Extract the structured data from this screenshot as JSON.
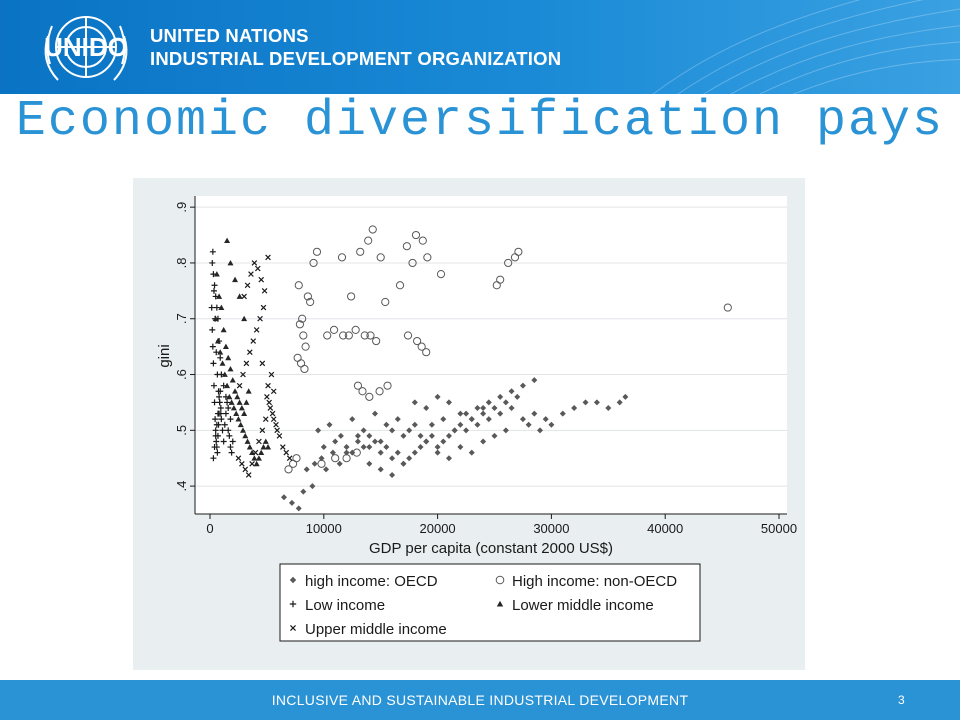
{
  "header": {
    "logo_text": "UNIDO",
    "org_line1": "UNITED NATIONS",
    "org_line2": "INDUSTRIAL DEVELOPMENT ORGANIZATION"
  },
  "slide": {
    "title": "Economic diversification pays"
  },
  "footer": {
    "text": "INCLUSIVE AND SUSTAINABLE INDUSTRIAL DEVELOPMENT",
    "page_number": "3"
  },
  "chart_data": {
    "type": "scatter",
    "xlabel": "GDP per capita (constant 2000 US$)",
    "ylabel": "gini",
    "xlim": [
      0,
      50000
    ],
    "ylim": [
      0.35,
      0.92
    ],
    "x_ticks": [
      0,
      10000,
      20000,
      30000,
      40000,
      50000
    ],
    "x_tick_labels": [
      "0",
      "10000",
      "20000",
      "30000",
      "40000",
      "50000"
    ],
    "y_ticks": [
      0.4,
      0.5,
      0.6,
      0.7,
      0.8,
      0.9
    ],
    "y_tick_labels": [
      ".4",
      ".5",
      ".6",
      ".7",
      ".8",
      ".9"
    ],
    "grid": true,
    "legend_position": "bottom",
    "series": [
      {
        "name": "high income: OECD",
        "marker": "diamond",
        "color": "#595959",
        "x": [
          8500,
          9200,
          9800,
          10200,
          10800,
          11400,
          12000,
          12500,
          13000,
          13500,
          14000,
          14500,
          15000,
          15500,
          16000,
          16500,
          17000,
          17500,
          18000,
          18500,
          19000,
          19500,
          20000,
          20500,
          21000,
          21500,
          22000,
          22500,
          23000,
          23500,
          24000,
          24500,
          25000,
          25500,
          26000,
          26500,
          27000,
          27500,
          28000,
          28500,
          29000,
          29500,
          30000,
          31000,
          32000,
          33000,
          34000,
          35000,
          36000,
          36500,
          9500,
          10500,
          11500,
          12500,
          13500,
          14500,
          15500,
          16500,
          17500,
          18500,
          19500,
          20500,
          21500,
          22500,
          23500,
          24500,
          25500,
          26500,
          27500,
          28500,
          10000,
          11000,
          12000,
          13000,
          14000,
          15000,
          16000,
          17000,
          18000,
          19000,
          20000,
          21000,
          22000,
          23000,
          24000,
          25000,
          26000,
          6500,
          7200,
          7800,
          8200,
          9000,
          18000,
          19000,
          20000,
          21000,
          22000,
          23000,
          24000,
          14000,
          15000,
          16000,
          17000
        ],
        "y": [
          0.43,
          0.44,
          0.45,
          0.43,
          0.46,
          0.44,
          0.47,
          0.46,
          0.48,
          0.47,
          0.49,
          0.48,
          0.46,
          0.47,
          0.45,
          0.46,
          0.44,
          0.45,
          0.46,
          0.47,
          0.48,
          0.49,
          0.47,
          0.48,
          0.49,
          0.5,
          0.51,
          0.5,
          0.52,
          0.51,
          0.53,
          0.52,
          0.54,
          0.53,
          0.55,
          0.54,
          0.56,
          0.52,
          0.51,
          0.53,
          0.5,
          0.52,
          0.51,
          0.53,
          0.54,
          0.55,
          0.55,
          0.54,
          0.55,
          0.56,
          0.5,
          0.51,
          0.49,
          0.52,
          0.5,
          0.53,
          0.51,
          0.52,
          0.5,
          0.49,
          0.51,
          0.52,
          0.5,
          0.53,
          0.54,
          0.55,
          0.56,
          0.57,
          0.58,
          0.59,
          0.47,
          0.48,
          0.46,
          0.49,
          0.47,
          0.48,
          0.5,
          0.49,
          0.51,
          0.48,
          0.46,
          0.45,
          0.47,
          0.46,
          0.48,
          0.49,
          0.5,
          0.38,
          0.37,
          0.36,
          0.39,
          0.4,
          0.55,
          0.54,
          0.56,
          0.55,
          0.53,
          0.52,
          0.54,
          0.44,
          0.43,
          0.42,
          0.44
        ]
      },
      {
        "name": "High income: non-OECD",
        "marker": "circle",
        "color": "#595959",
        "x": [
          7800,
          8100,
          8600,
          9100,
          9400,
          11600,
          12400,
          13200,
          13900,
          14300,
          15000,
          16700,
          17300,
          17800,
          18100,
          18700,
          19100,
          20300,
          25200,
          25500,
          26200,
          26800,
          27100,
          45500,
          7900,
          8200,
          8400,
          10300,
          10900,
          11700,
          12200,
          12800,
          13600,
          14100,
          14600,
          17400,
          18200,
          18600,
          19000,
          7700,
          8000,
          8300,
          13000,
          13400,
          14000,
          14900,
          15600,
          6900,
          7300,
          7600,
          9800,
          11000,
          12000,
          12900,
          8800,
          15400
        ],
        "y": [
          0.76,
          0.7,
          0.74,
          0.8,
          0.82,
          0.81,
          0.74,
          0.82,
          0.84,
          0.86,
          0.81,
          0.76,
          0.83,
          0.8,
          0.85,
          0.84,
          0.81,
          0.78,
          0.76,
          0.77,
          0.8,
          0.81,
          0.82,
          0.72,
          0.69,
          0.67,
          0.65,
          0.67,
          0.68,
          0.67,
          0.67,
          0.68,
          0.67,
          0.67,
          0.66,
          0.67,
          0.66,
          0.65,
          0.64,
          0.63,
          0.62,
          0.61,
          0.58,
          0.57,
          0.56,
          0.57,
          0.58,
          0.43,
          0.44,
          0.45,
          0.44,
          0.45,
          0.45,
          0.46,
          0.73,
          0.73
        ]
      },
      {
        "name": "Low income",
        "marker": "plus",
        "color": "#1a1a1a",
        "x": [
          150,
          200,
          250,
          300,
          350,
          400,
          450,
          500,
          550,
          600,
          650,
          700,
          750,
          800,
          850,
          900,
          950,
          1000,
          1100,
          1200,
          1300,
          1400,
          1500,
          1600,
          1700,
          1800,
          1900,
          2000,
          200,
          300,
          400,
          500,
          600,
          700,
          800,
          900,
          1000,
          1200,
          1400,
          1600,
          1800,
          250,
          350,
          450,
          550,
          650,
          750,
          850,
          950,
          300,
          400,
          500,
          600,
          700,
          800
        ],
        "y": [
          0.72,
          0.68,
          0.65,
          0.62,
          0.58,
          0.55,
          0.52,
          0.5,
          0.48,
          0.47,
          0.46,
          0.49,
          0.51,
          0.53,
          0.55,
          0.57,
          0.54,
          0.52,
          0.5,
          0.48,
          0.51,
          0.53,
          0.55,
          0.5,
          0.49,
          0.47,
          0.46,
          0.48,
          0.8,
          0.78,
          0.76,
          0.74,
          0.72,
          0.7,
          0.66,
          0.63,
          0.6,
          0.58,
          0.56,
          0.54,
          0.52,
          0.82,
          0.75,
          0.7,
          0.64,
          0.6,
          0.57,
          0.55,
          0.53,
          0.45,
          0.47,
          0.49,
          0.51,
          0.53,
          0.56
        ]
      },
      {
        "name": "Lower middle income",
        "marker": "triangle",
        "color": "#262626",
        "x": [
          500,
          700,
          900,
          1100,
          1300,
          1500,
          1700,
          1900,
          2100,
          2300,
          2500,
          2700,
          2900,
          3100,
          3300,
          3500,
          3700,
          3900,
          4100,
          4300,
          4500,
          4700,
          4900,
          5100,
          600,
          800,
          1000,
          1200,
          1400,
          1600,
          1800,
          2000,
          2200,
          2400,
          2600,
          2800,
          3000,
          3200,
          3400,
          1500,
          1800,
          2200,
          2600,
          3000
        ],
        "y": [
          0.7,
          0.66,
          0.64,
          0.62,
          0.6,
          0.58,
          0.56,
          0.55,
          0.54,
          0.53,
          0.52,
          0.51,
          0.5,
          0.49,
          0.48,
          0.47,
          0.46,
          0.45,
          0.44,
          0.45,
          0.46,
          0.47,
          0.48,
          0.47,
          0.78,
          0.74,
          0.72,
          0.68,
          0.65,
          0.63,
          0.61,
          0.59,
          0.57,
          0.56,
          0.55,
          0.54,
          0.53,
          0.55,
          0.57,
          0.84,
          0.8,
          0.77,
          0.74,
          0.7
        ]
      },
      {
        "name": "Upper middle income",
        "marker": "cross",
        "color": "#1a1a1a",
        "x": [
          2500,
          2800,
          3100,
          3400,
          3700,
          4000,
          4300,
          4600,
          4900,
          5200,
          5500,
          5800,
          6100,
          6400,
          6700,
          7000,
          2600,
          2900,
          3200,
          3500,
          3800,
          4100,
          4400,
          4700,
          5000,
          5300,
          5600,
          5900,
          3000,
          3300,
          3600,
          3900,
          4200,
          4500,
          4800,
          5100,
          5400,
          4600,
          5100,
          5600
        ],
        "y": [
          0.45,
          0.44,
          0.43,
          0.42,
          0.44,
          0.46,
          0.48,
          0.5,
          0.52,
          0.55,
          0.53,
          0.51,
          0.49,
          0.47,
          0.46,
          0.45,
          0.58,
          0.6,
          0.62,
          0.64,
          0.66,
          0.68,
          0.7,
          0.72,
          0.56,
          0.54,
          0.52,
          0.5,
          0.74,
          0.76,
          0.78,
          0.8,
          0.79,
          0.77,
          0.75,
          0.81,
          0.6,
          0.62,
          0.58,
          0.57
        ]
      }
    ]
  }
}
